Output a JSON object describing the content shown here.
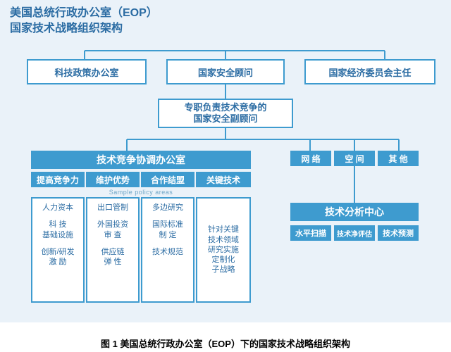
{
  "type": "org-chart",
  "colors": {
    "background": "#eaf2f9",
    "box_border": "#3e9bcf",
    "box_fill": "#ffffff",
    "box_text": "#2b6ca3",
    "bar_fill": "#3e9bcf",
    "bar_text": "#ffffff",
    "connector": "#3e9bcf",
    "caption_text": "#000000"
  },
  "title": {
    "line1": "美国总统行政办公室（EOP）",
    "line2": "国家技术战略组织架构"
  },
  "top_row": {
    "ostp": "科技政策办公室",
    "nsa": "国家安全顾问",
    "nec": "国家经济委员会主任"
  },
  "deputy": {
    "line1": "专职负责技术竞争的",
    "line2": "国家安全副顾问"
  },
  "left_office": {
    "header": "技术竞争协调办公室",
    "subnote": "Sample policy areas",
    "subheads": [
      "提高竞争力",
      "维护优势",
      "合作结盟",
      "关键技术"
    ],
    "columns": [
      [
        "人力资本",
        "科 技\n基础设施",
        "创新/研发\n激 励"
      ],
      [
        "出口管制",
        "外国投资\n审 查",
        "供应链\n弹 性"
      ],
      [
        "多边研究",
        "国际标准\n制 定",
        "技术规范"
      ],
      [
        "针对关键\n技术领域\n研究实施\n定制化\n子战略"
      ]
    ]
  },
  "mid_tabs": [
    "网 络",
    "空 间",
    "其 他"
  ],
  "analysis_center": {
    "header": "技术分析中心",
    "items": [
      "水平扫描",
      "技术净评估",
      "技术预测"
    ]
  },
  "caption": "图 1 美国总统行政办公室（EOP）下的国家技术战略组织架构"
}
